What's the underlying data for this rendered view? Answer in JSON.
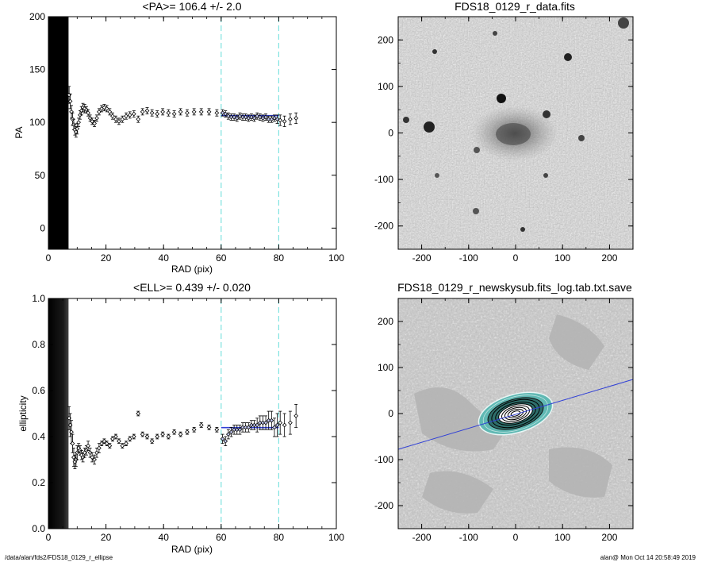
{
  "chart_data": [
    {
      "type": "scatter",
      "title": "<PA>= 106.4 +/-   2.0",
      "xlabel": "RAD (pix)",
      "ylabel": "PA",
      "xlim": [
        0,
        100
      ],
      "ylim": [
        -20,
        200
      ],
      "xticks": [
        "0",
        "20",
        "40",
        "60",
        "80",
        "100"
      ],
      "yticks": [
        "0",
        "50",
        "100",
        "150",
        "200"
      ],
      "shaded_band": [
        0,
        7
      ],
      "vlines": [
        60,
        80
      ],
      "fit": {
        "x": [
          60,
          80
        ],
        "y": 106.4
      },
      "series": [
        {
          "x": [
            7.2,
            7.6,
            8.0,
            8.4,
            8.8,
            9.2,
            9.6,
            10.0,
            10.5,
            11,
            11.5,
            12,
            12.6,
            13.2,
            13.8,
            14.5,
            15.2,
            16,
            16.8,
            17.6,
            18.5,
            19.4,
            20.3,
            21.3,
            22.3,
            23.4,
            24.5,
            25.7,
            27,
            28.3,
            29.7,
            31.2,
            32.7,
            34.3,
            36,
            37.8,
            39.7,
            41.7,
            43.7,
            45.9,
            48.2,
            50.6,
            53.1,
            55.8,
            58.5,
            60.5,
            61.5,
            62.5,
            63.5,
            64.5,
            65.5,
            66.5,
            67.5,
            68.5,
            69.5,
            70.5,
            71.5,
            72.5,
            73.5,
            74.5,
            75.5,
            76.5,
            77.5,
            78.5,
            79.5,
            80.5,
            82,
            84,
            86
          ],
          "y": [
            126,
            120,
            110,
            103,
            98,
            93,
            91,
            94,
            100,
            107,
            111,
            114,
            113,
            112,
            109,
            104,
            101,
            99,
            104,
            110,
            113,
            114,
            113,
            110,
            106,
            103,
            101,
            103,
            106,
            107,
            108,
            103,
            110,
            111,
            109,
            108,
            110,
            109,
            108,
            110,
            109,
            110,
            110,
            110,
            109,
            109,
            108,
            106,
            105,
            105,
            104,
            106,
            105,
            105,
            104,
            105,
            104,
            106,
            105,
            104,
            105,
            103,
            103,
            104,
            103,
            102,
            101,
            103,
            104
          ],
          "yerr": [
            8,
            7,
            6,
            6,
            5,
            5,
            5,
            5,
            4,
            4,
            4,
            4,
            4,
            3,
            3,
            3,
            3,
            3,
            3,
            3,
            3,
            3,
            3,
            3,
            3,
            3,
            3,
            3,
            3,
            3,
            3,
            3,
            3,
            3,
            3,
            3,
            3,
            3,
            3,
            3,
            3,
            3,
            3,
            3,
            3,
            3,
            3,
            3,
            3,
            3,
            3,
            3,
            3,
            3,
            3,
            3,
            3,
            3,
            3,
            3,
            3,
            3,
            3,
            3,
            4,
            5,
            5,
            5,
            5
          ]
        }
      ]
    },
    {
      "type": "heatmap",
      "title": "FDS18_0129_r_data.fits",
      "xlim": [
        -250,
        250
      ],
      "ylim": [
        -250,
        250
      ],
      "xticks": [
        "-200",
        "-100",
        "0",
        "100",
        "200"
      ],
      "yticks": [
        "-200",
        "-100",
        "0",
        "100",
        "200"
      ]
    },
    {
      "type": "scatter",
      "title": "<ELL>= 0.439 +/-  0.020",
      "xlabel": "RAD (pix)",
      "ylabel": "ellipticity",
      "xlim": [
        0,
        100
      ],
      "ylim": [
        0.0,
        1.0
      ],
      "xticks": [
        "0",
        "20",
        "40",
        "60",
        "80",
        "100"
      ],
      "yticks": [
        "0.0",
        "0.2",
        "0.4",
        "0.6",
        "0.8",
        "1.0"
      ],
      "shaded_band": [
        0,
        7
      ],
      "vlines": [
        60,
        80
      ],
      "fit": {
        "x": [
          60,
          80
        ],
        "y": 0.439
      },
      "series": [
        {
          "x": [
            7.2,
            7.6,
            8.0,
            8.4,
            8.8,
            9.2,
            9.6,
            10.0,
            10.5,
            11,
            11.5,
            12,
            12.6,
            13.2,
            13.8,
            14.5,
            15.2,
            16,
            16.8,
            17.6,
            18.5,
            19.4,
            20.3,
            21.3,
            22.3,
            23.4,
            24.5,
            25.7,
            27,
            28.3,
            29.7,
            31.2,
            32.7,
            34.3,
            36,
            37.8,
            39.7,
            41.7,
            43.7,
            45.9,
            48.2,
            50.6,
            53.1,
            55.8,
            58.5,
            60.5,
            61.5,
            62.5,
            63.5,
            64.5,
            65.5,
            66.5,
            67.5,
            68.5,
            69.5,
            70.5,
            71.5,
            72.5,
            73.5,
            74.5,
            75.5,
            76.5,
            77.5,
            78.5,
            79.5,
            80.5,
            82,
            84,
            86
          ],
          "y": [
            0.48,
            0.45,
            0.42,
            0.37,
            0.31,
            0.29,
            0.3,
            0.33,
            0.35,
            0.34,
            0.32,
            0.31,
            0.33,
            0.34,
            0.36,
            0.33,
            0.31,
            0.3,
            0.33,
            0.35,
            0.37,
            0.38,
            0.37,
            0.36,
            0.39,
            0.4,
            0.38,
            0.36,
            0.37,
            0.39,
            0.4,
            0.5,
            0.41,
            0.4,
            0.38,
            0.4,
            0.41,
            0.4,
            0.42,
            0.41,
            0.42,
            0.43,
            0.45,
            0.44,
            0.43,
            0.39,
            0.38,
            0.41,
            0.42,
            0.43,
            0.43,
            0.43,
            0.44,
            0.44,
            0.44,
            0.45,
            0.45,
            0.45,
            0.46,
            0.46,
            0.46,
            0.47,
            0.47,
            0.44,
            0.45,
            0.46,
            0.45,
            0.46,
            0.49
          ],
          "yerr": [
            0.05,
            0.05,
            0.05,
            0.04,
            0.04,
            0.03,
            0.03,
            0.03,
            0.02,
            0.02,
            0.02,
            0.02,
            0.02,
            0.02,
            0.02,
            0.02,
            0.02,
            0.02,
            0.02,
            0.02,
            0.01,
            0.01,
            0.01,
            0.01,
            0.01,
            0.01,
            0.01,
            0.01,
            0.01,
            0.01,
            0.01,
            0.01,
            0.01,
            0.01,
            0.01,
            0.01,
            0.01,
            0.01,
            0.01,
            0.01,
            0.01,
            0.01,
            0.01,
            0.01,
            0.01,
            0.02,
            0.02,
            0.02,
            0.02,
            0.02,
            0.02,
            0.02,
            0.02,
            0.02,
            0.02,
            0.02,
            0.02,
            0.03,
            0.03,
            0.03,
            0.03,
            0.04,
            0.04,
            0.04,
            0.05,
            0.05,
            0.05,
            0.05,
            0.05
          ]
        }
      ]
    },
    {
      "type": "heatmap",
      "title": "FDS18_0129_r_newskysub.fits_log.tab.txt.save",
      "xlim": [
        -250,
        250
      ],
      "ylim": [
        -250,
        250
      ],
      "xticks": [
        "-200",
        "-100",
        "0",
        "100",
        "200"
      ],
      "yticks": [
        "-200",
        "-100",
        "0",
        "100",
        "200"
      ],
      "pa_line_deg": 106.4
    }
  ],
  "footer": {
    "left": "/data/alan/fds2/FDS18_0129_r_ellipse",
    "right": "alan@  Mon Oct 14 20:58:49 2019"
  },
  "colors": {
    "fit": "#2f3fd6",
    "vline": "#7fe3e0",
    "teal": "#5fb8b3",
    "points": "#000000"
  }
}
